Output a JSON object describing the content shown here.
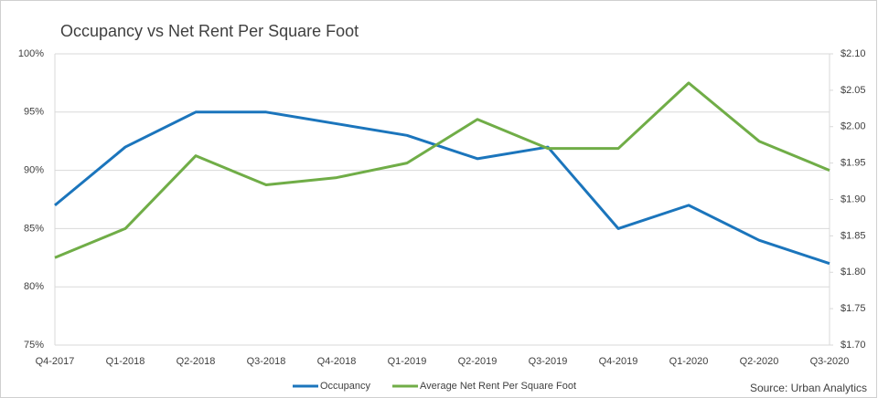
{
  "chart_data": {
    "type": "line",
    "title": "Occupancy vs Net Rent Per Square Foot",
    "annotation": "Source: Urban Analytics",
    "categories": [
      "Q4-2017",
      "Q1-2018",
      "Q2-2018",
      "Q3-2018",
      "Q4-2018",
      "Q1-2019",
      "Q2-2019",
      "Q3-2019",
      "Q4-2019",
      "Q1-2020",
      "Q2-2020",
      "Q3-2020"
    ],
    "series": [
      {
        "name": "Occupancy",
        "color": "#1b75bc",
        "values": [
          87,
          92,
          95,
          95,
          94,
          93,
          91,
          92,
          85,
          87,
          84,
          82
        ]
      },
      {
        "name": "Average Net Rent Per Square Foot",
        "color": "#70ad47",
        "axis": "y2",
        "values": [
          1.82,
          1.86,
          1.96,
          1.92,
          1.93,
          1.95,
          2.01,
          1.97,
          1.97,
          2.06,
          1.98,
          1.94
        ]
      }
    ],
    "ylim": [
      75,
      100
    ],
    "yticks": [
      {
        "value": 75,
        "label": "75%"
      },
      {
        "value": 80,
        "label": "80%"
      },
      {
        "value": 85,
        "label": "85%"
      },
      {
        "value": 90,
        "label": "90%"
      },
      {
        "value": 95,
        "label": "95%"
      },
      {
        "value": 100,
        "label": "100%"
      }
    ],
    "y2lim": [
      1.7,
      2.1
    ],
    "y2ticks": [
      {
        "value": 1.7,
        "label": "$1.70"
      },
      {
        "value": 1.75,
        "label": "$1.75"
      },
      {
        "value": 1.8,
        "label": "$1.80"
      },
      {
        "value": 1.85,
        "label": "$1.85"
      },
      {
        "value": 1.9,
        "label": "$1.90"
      },
      {
        "value": 1.95,
        "label": "$1.95"
      },
      {
        "value": 2.0,
        "label": "$2.00"
      },
      {
        "value": 2.05,
        "label": "$2.05"
      },
      {
        "value": 2.1,
        "label": "$2.10"
      }
    ],
    "grid": true,
    "legend": "bottom"
  }
}
